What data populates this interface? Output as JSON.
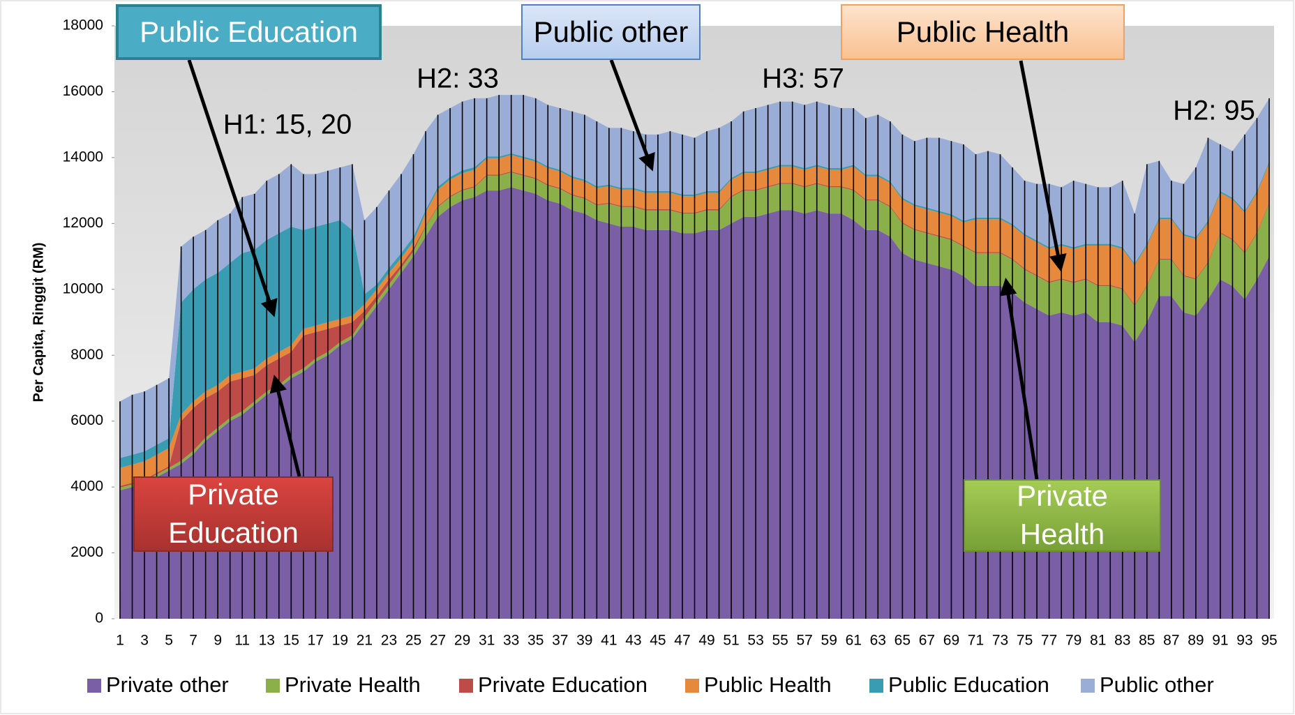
{
  "chart_data": {
    "type": "stacked_area",
    "ylabel": "Per Capita, Ringgit (RM)",
    "categories": [
      1,
      null,
      3,
      null,
      5,
      null,
      7,
      null,
      9,
      null,
      11,
      null,
      13,
      null,
      15,
      null,
      17,
      null,
      19,
      null,
      21,
      null,
      23,
      null,
      25,
      null,
      27,
      null,
      29,
      null,
      31,
      null,
      33,
      null,
      35,
      null,
      37,
      null,
      39,
      null,
      41,
      null,
      43,
      null,
      45,
      null,
      47,
      null,
      49,
      null,
      51,
      null,
      53,
      null,
      55,
      null,
      57,
      null,
      59,
      null,
      61,
      null,
      63,
      null,
      65,
      null,
      67,
      null,
      69,
      null,
      71,
      null,
      73,
      null,
      75,
      null,
      77,
      null,
      79,
      null,
      81,
      null,
      83,
      null,
      85,
      null,
      87,
      null,
      89,
      null,
      91,
      null,
      93,
      null,
      95
    ],
    "ylim": [
      0,
      18000
    ],
    "yticks": [
      0,
      2000,
      4000,
      6000,
      8000,
      10000,
      12000,
      14000,
      16000,
      18000
    ],
    "series": [
      {
        "name": "Private other",
        "color": "#7a5ea6",
        "values": [
          3900,
          4000,
          4100,
          4300,
          4500,
          4700,
          5000,
          5400,
          5700,
          6000,
          6200,
          6500,
          6800,
          7000,
          7300,
          7500,
          7800,
          8000,
          8300,
          8500,
          9000,
          9500,
          10000,
          10500,
          11000,
          11600,
          12200,
          12500,
          12700,
          12800,
          13000,
          13000,
          13100,
          13000,
          12900,
          12700,
          12600,
          12400,
          12300,
          12100,
          12000,
          11900,
          11900,
          11800,
          11800,
          11800,
          11700,
          11700,
          11800,
          11800,
          12000,
          12200,
          12200,
          12300,
          12400,
          12400,
          12300,
          12400,
          12300,
          12300,
          12100,
          11800,
          11800,
          11600,
          11100,
          10900,
          10800,
          10700,
          10600,
          10400,
          10100,
          10100,
          10100,
          9900,
          9600,
          9400,
          9200,
          9300,
          9200,
          9300,
          9000,
          9000,
          8900,
          8400,
          9000,
          9800,
          9800,
          9300,
          9200,
          9700,
          10300,
          10100,
          9700,
          10300,
          11000
        ]
      },
      {
        "name": "Private Health",
        "color": "#8bb04a",
        "values": [
          80,
          80,
          80,
          80,
          80,
          100,
          100,
          100,
          100,
          100,
          100,
          100,
          100,
          100,
          100,
          100,
          100,
          100,
          100,
          100,
          150,
          150,
          150,
          150,
          150,
          300,
          300,
          300,
          300,
          300,
          450,
          450,
          450,
          450,
          450,
          450,
          450,
          450,
          450,
          450,
          600,
          600,
          600,
          600,
          600,
          600,
          600,
          600,
          600,
          600,
          800,
          800,
          800,
          800,
          800,
          800,
          800,
          800,
          800,
          800,
          900,
          900,
          900,
          900,
          900,
          900,
          900,
          900,
          900,
          900,
          1000,
          1000,
          1000,
          1000,
          1000,
          1000,
          1000,
          1000,
          1000,
          1000,
          1100,
          1100,
          1100,
          1100,
          1100,
          1100,
          1100,
          1100,
          1100,
          1100,
          1400,
          1400,
          1400,
          1400,
          1600
        ]
      },
      {
        "name": "Private Education",
        "color": "#be4b48",
        "values": [
          50,
          50,
          50,
          50,
          50,
          1200,
          1300,
          1200,
          1100,
          1100,
          1000,
          800,
          800,
          800,
          700,
          1000,
          800,
          700,
          500,
          400,
          200,
          150,
          150,
          100,
          100,
          30,
          30,
          30,
          30,
          30,
          30,
          30,
          30,
          30,
          30,
          30,
          30,
          30,
          30,
          30,
          30,
          30,
          30,
          30,
          30,
          30,
          30,
          30,
          30,
          30,
          30,
          30,
          30,
          30,
          30,
          30,
          30,
          30,
          30,
          30,
          30,
          30,
          30,
          30,
          30,
          30,
          30,
          30,
          30,
          30,
          30,
          30,
          30,
          30,
          30,
          30,
          30,
          30,
          30,
          30,
          30,
          30,
          30,
          30,
          30,
          30,
          30,
          30,
          30,
          30,
          30,
          30,
          30,
          30,
          30
        ]
      },
      {
        "name": "Public Health",
        "color": "#e7893c",
        "values": [
          550,
          550,
          550,
          550,
          550,
          200,
          200,
          200,
          200,
          200,
          200,
          200,
          200,
          200,
          200,
          200,
          200,
          200,
          200,
          200,
          200,
          200,
          200,
          200,
          200,
          400,
          500,
          500,
          500,
          500,
          500,
          500,
          500,
          500,
          500,
          500,
          500,
          500,
          500,
          500,
          500,
          500,
          500,
          500,
          500,
          500,
          500,
          500,
          500,
          500,
          500,
          500,
          500,
          500,
          500,
          500,
          500,
          500,
          500,
          500,
          700,
          700,
          700,
          700,
          700,
          700,
          700,
          700,
          700,
          700,
          1000,
          1000,
          1000,
          1000,
          1000,
          1000,
          1000,
          1000,
          1000,
          1000,
          1200,
          1200,
          1200,
          1200,
          1200,
          1200,
          1200,
          1200,
          1200,
          1200,
          1200,
          1200,
          1200,
          1200,
          1200
        ]
      },
      {
        "name": "Public Education",
        "color": "#3a9cb3",
        "values": [
          300,
          300,
          300,
          300,
          300,
          3400,
          3400,
          3400,
          3400,
          3400,
          3600,
          3600,
          3600,
          3600,
          3600,
          3000,
          3000,
          3000,
          3000,
          2600,
          300,
          150,
          150,
          150,
          150,
          80,
          80,
          80,
          80,
          80,
          50,
          50,
          50,
          50,
          50,
          50,
          50,
          50,
          50,
          50,
          50,
          50,
          50,
          50,
          50,
          50,
          50,
          50,
          50,
          50,
          50,
          50,
          50,
          50,
          50,
          50,
          50,
          50,
          50,
          50,
          50,
          50,
          50,
          50,
          50,
          50,
          50,
          50,
          50,
          50,
          50,
          50,
          50,
          50,
          50,
          50,
          50,
          50,
          50,
          50,
          50,
          50,
          50,
          50,
          50,
          50,
          50,
          50,
          50,
          50,
          50,
          50,
          50,
          50,
          50
        ]
      },
      {
        "name": "Public other",
        "color": "#9aadd6",
        "values": [
          1720,
          1820,
          1820,
          1820,
          1820,
          1700,
          1600,
          1500,
          1600,
          1500,
          1700,
          1700,
          1800,
          1800,
          1900,
          1700,
          1600,
          1600,
          1600,
          2000,
          2250,
          2350,
          2350,
          2400,
          2500,
          2390,
          2190,
          2090,
          2090,
          2090,
          1770,
          1870,
          1770,
          1870,
          1870,
          1870,
          1870,
          1970,
          1970,
          1970,
          1720,
          1820,
          1720,
          1720,
          1720,
          1820,
          1820,
          1720,
          1820,
          1920,
          1720,
          1820,
          1920,
          1920,
          1920,
          1920,
          1920,
          1920,
          1920,
          1820,
          1720,
          1720,
          1820,
          1820,
          1920,
          1920,
          2120,
          2220,
          2220,
          2320,
          1920,
          2020,
          1920,
          1720,
          1620,
          1720,
          1920,
          1720,
          2020,
          1820,
          1720,
          1720,
          2020,
          1520,
          2420,
          1720,
          1120,
          1520,
          2120,
          2520,
          1420,
          1420,
          2320,
          2220,
          1920
        ]
      }
    ],
    "annotations": [
      "H1: 15, 20",
      "H2: 33",
      "H3: 57",
      "H2: 95"
    ],
    "callouts": [
      "Public Education",
      "Public other",
      "Public Health",
      "Private Education",
      "Private Health"
    ],
    "legend": "bottom"
  }
}
